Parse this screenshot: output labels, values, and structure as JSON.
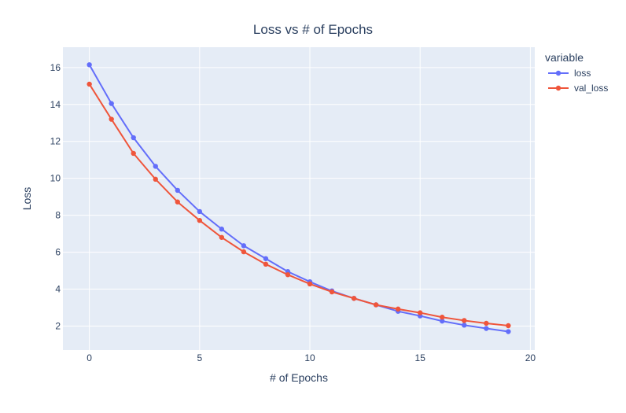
{
  "chart_data": {
    "type": "line",
    "title": "Loss vs # of Epochs",
    "xlabel": "# of Epochs",
    "ylabel": "Loss",
    "xlim": [
      -1.2,
      20.2
    ],
    "ylim": [
      0.7,
      17.1
    ],
    "xticks": [
      0,
      5,
      10,
      15,
      20
    ],
    "yticks": [
      2,
      4,
      6,
      8,
      10,
      12,
      14,
      16
    ],
    "grid": true,
    "legend": {
      "title": "variable",
      "placement": "top-right, outside plot"
    },
    "x": [
      0,
      1,
      2,
      3,
      4,
      5,
      6,
      7,
      8,
      9,
      10,
      11,
      12,
      13,
      14,
      15,
      16,
      17,
      18,
      19
    ],
    "series": [
      {
        "name": "loss",
        "color": "#636efa",
        "values": [
          16.15,
          14.05,
          12.2,
          10.65,
          9.35,
          8.2,
          7.25,
          6.35,
          5.65,
          4.95,
          4.4,
          3.9,
          3.5,
          3.15,
          2.8,
          2.55,
          2.27,
          2.05,
          1.87,
          1.7
        ]
      },
      {
        "name": "val_loss",
        "color": "#ef553b",
        "values": [
          15.1,
          13.2,
          11.35,
          9.95,
          8.72,
          7.72,
          6.8,
          6.02,
          5.35,
          4.78,
          4.28,
          3.85,
          3.5,
          3.15,
          2.92,
          2.72,
          2.48,
          2.3,
          2.15,
          2.02
        ]
      }
    ]
  }
}
